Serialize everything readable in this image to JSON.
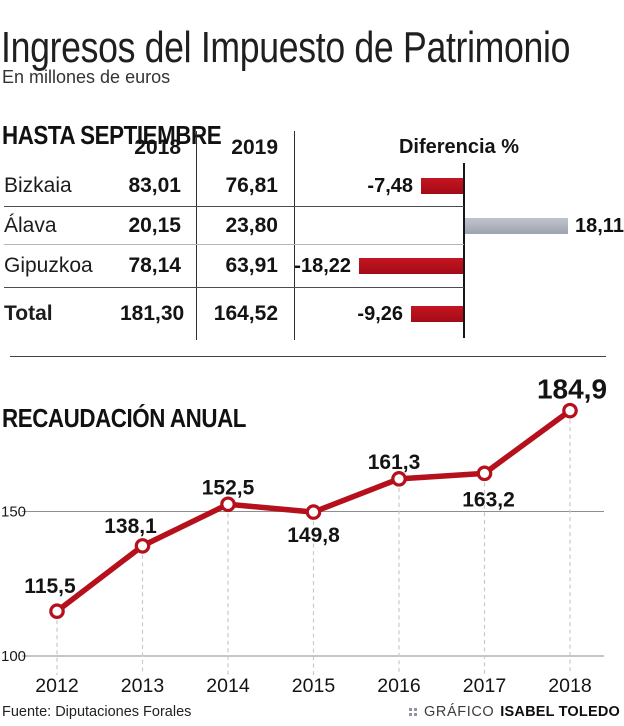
{
  "header": {
    "title": "Ingresos del Impuesto de Patrimonio",
    "subtitle": "En millones de euros"
  },
  "table": {
    "heading": "HASTA SEPTIEMBRE",
    "columns": [
      "2018",
      "2019",
      "Diferencia %"
    ],
    "rows": [
      {
        "label": "Bizkaia",
        "y2018": "83,01",
        "y2019": "76,81",
        "diff": -7.48,
        "diff_label": "-7,48"
      },
      {
        "label": "Álava",
        "y2018": "20,15",
        "y2019": "23,80",
        "diff": 18.11,
        "diff_label": "18,11"
      },
      {
        "label": "Gipuzkoa",
        "y2018": "78,14",
        "y2019": "63,91",
        "diff": -18.22,
        "diff_label": "-18,22"
      },
      {
        "label": "Total",
        "y2018": "181,30",
        "y2019": "164,52",
        "diff": -9.26,
        "diff_label": "-9,26"
      }
    ]
  },
  "palette": {
    "negative_bar": "#b5101b",
    "positive_bar": "#acb1ba",
    "line": "#b5101b"
  },
  "chart_data": {
    "type": "line",
    "title": "RECAUDACIÓN ANUAL",
    "categories": [
      "2012",
      "2013",
      "2014",
      "2015",
      "2016",
      "2017",
      "2018"
    ],
    "values": [
      115.5,
      138.1,
      152.5,
      149.8,
      161.3,
      163.2,
      184.9
    ],
    "point_labels": [
      "115,5",
      "138,1",
      "152,5",
      "149,8",
      "161,3",
      "163,2",
      "184,9"
    ],
    "gridlines": [
      {
        "label": "150",
        "value": 150
      },
      {
        "label": "100",
        "value": 100
      }
    ],
    "ylim": [
      95,
      190
    ],
    "grid": "horizontal",
    "legend": "none",
    "line_color": "#b5101b",
    "marker": "open-circle",
    "label_layout": [
      [
        -7,
        -18,
        21
      ],
      [
        -12,
        -13,
        21
      ],
      [
        0,
        -10,
        21
      ],
      [
        0,
        30,
        21
      ],
      [
        -5,
        -10,
        21
      ],
      [
        4,
        33,
        21
      ],
      [
        2,
        -12,
        28
      ]
    ]
  },
  "footer": {
    "source": "Fuente: Diputaciones Forales",
    "credit_word": "GRÁFICO",
    "credit_name": "ISABEL TOLEDO"
  }
}
